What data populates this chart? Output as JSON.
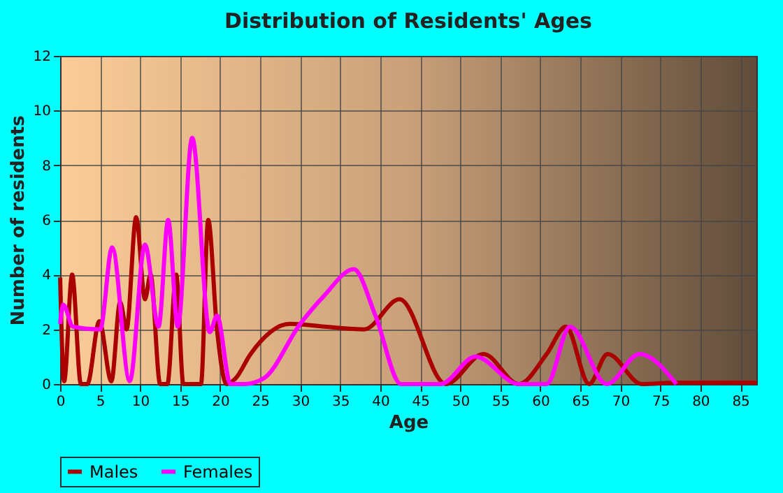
{
  "chart_data": {
    "type": "line",
    "title": "Distribution of Residents' Ages",
    "xlabel": "Age",
    "ylabel": "Number of residents",
    "xlim": [
      0,
      87
    ],
    "xticks": [
      0,
      5,
      10,
      15,
      20,
      25,
      30,
      35,
      40,
      45,
      50,
      55,
      60,
      65,
      70,
      75,
      80,
      85
    ],
    "ylim": [
      0,
      12
    ],
    "yticks": [
      0,
      2,
      4,
      6,
      8,
      10,
      12
    ],
    "grid": true,
    "legend": "bottom",
    "line_style": "solid",
    "marker": "none",
    "series": [
      {
        "name": "Males",
        "color": "#aa0000",
        "x": [
          0,
          0.5,
          1.5,
          2.6,
          3.4,
          4.9,
          6.4,
          7.5,
          8.3,
          9.5,
          10.6,
          11.3,
          12.5,
          13.4,
          14.5,
          15.4,
          17.6,
          18.5,
          19.6,
          20.8,
          21.9,
          23.8,
          28.7,
          33,
          38,
          42.4,
          48.2,
          52.9,
          57.3,
          60.8,
          63.2,
          66.1,
          68.4,
          72.7,
          77,
          87
        ],
        "values": [
          3.9,
          0.1,
          4,
          0,
          0,
          2.3,
          0.1,
          3,
          2,
          6.1,
          3.1,
          4,
          0,
          0,
          4,
          0,
          0,
          6,
          2,
          0,
          0.2,
          1.1,
          2.2,
          2.1,
          2,
          3.1,
          0,
          1.1,
          0,
          1.1,
          2.1,
          0,
          1.1,
          0,
          0.05,
          0.05
        ]
      },
      {
        "name": "Females",
        "color": "#ff00ff",
        "x": [
          0,
          0.4,
          1.6,
          5,
          6.5,
          8.7,
          10.6,
          12.3,
          13.5,
          14.7,
          16.5,
          18.7,
          19.6,
          21.3,
          23,
          25.4,
          30,
          32.9,
          36.7,
          39.4,
          42.6,
          47.5,
          51.9,
          57.3,
          60.8,
          63.7,
          68.3,
          72.4,
          77
        ],
        "values": [
          2.2,
          2.9,
          2.1,
          2,
          5,
          0.1,
          5.1,
          2.1,
          6,
          2.1,
          9,
          1.9,
          2.5,
          0,
          0,
          0.2,
          2.2,
          3.2,
          4.2,
          2.5,
          0,
          0,
          1,
          0,
          0,
          2.1,
          0,
          1.1,
          0
        ]
      }
    ]
  }
}
